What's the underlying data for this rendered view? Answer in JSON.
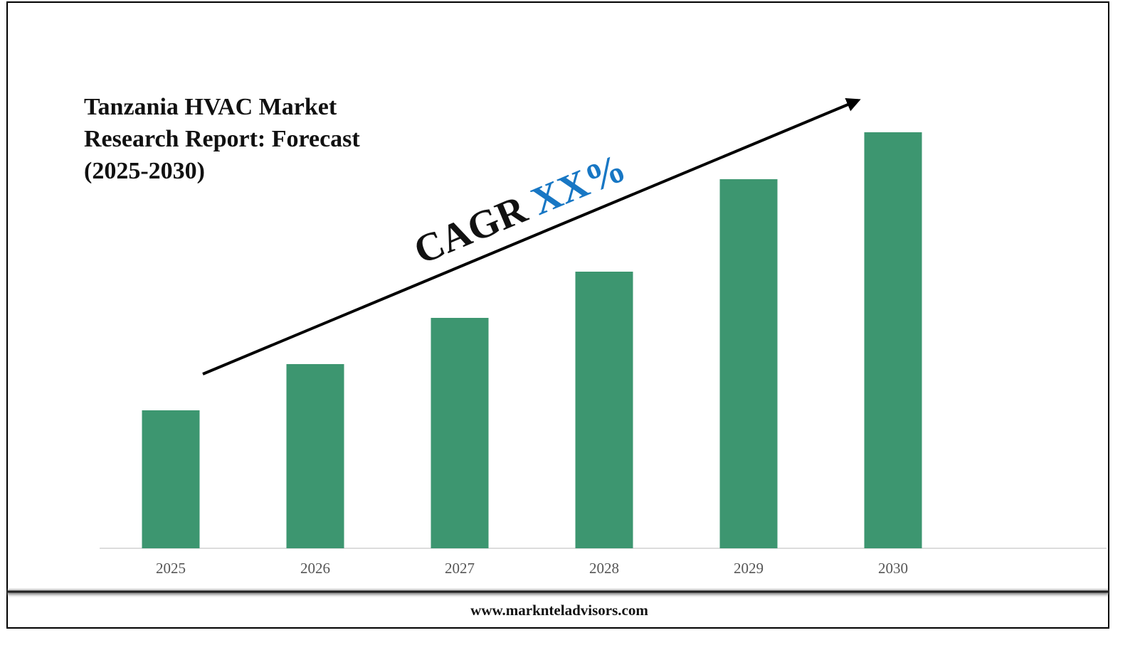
{
  "chart_data": {
    "type": "bar",
    "title": "Tanzania HVAC Market Research Report: Forecast (2025-2030)",
    "annotation": {
      "cagr": "CAGR",
      "value": "XX%"
    },
    "categories": [
      "2025",
      "2026",
      "2027",
      "2028",
      "2029",
      "2030"
    ],
    "values": [
      194,
      259,
      324,
      389,
      519,
      585
    ],
    "color": "#3d9670",
    "ylim": [
      0,
      600
    ]
  },
  "footer": "www.marknteladvisors.com"
}
